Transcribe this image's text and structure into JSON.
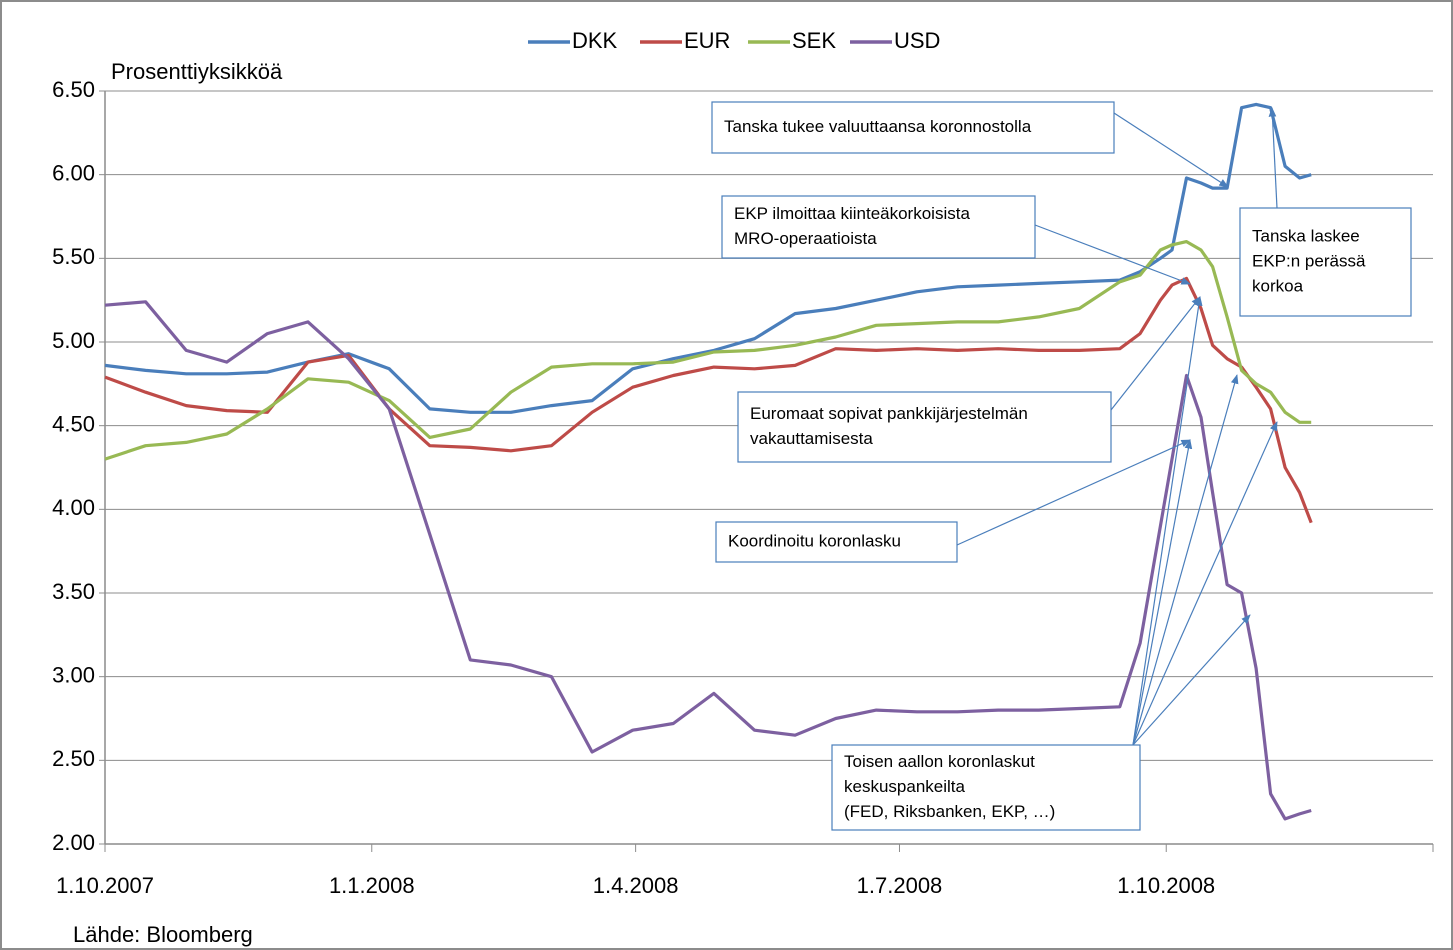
{
  "chart_data": {
    "type": "line",
    "y_label": "Prosenttiyksikköä",
    "source": "Lähde: Bloomberg",
    "x": [
      "2007-10-01",
      "2007-10-15",
      "2007-10-29",
      "2007-11-12",
      "2007-11-26",
      "2007-12-10",
      "2007-12-24",
      "2008-01-07",
      "2008-01-21",
      "2008-02-04",
      "2008-02-18",
      "2008-03-03",
      "2008-03-17",
      "2008-03-31",
      "2008-04-14",
      "2008-04-28",
      "2008-05-12",
      "2008-05-26",
      "2008-06-09",
      "2008-06-23",
      "2008-07-07",
      "2008-07-21",
      "2008-08-04",
      "2008-08-18",
      "2008-09-01",
      "2008-09-15",
      "2008-09-22",
      "2008-09-29",
      "2008-10-03",
      "2008-10-08",
      "2008-10-13",
      "2008-10-17",
      "2008-10-22",
      "2008-10-27",
      "2008-11-01",
      "2008-11-06",
      "2008-11-11",
      "2008-11-16",
      "2008-11-20"
    ],
    "series": [
      {
        "name": "DKK",
        "color": "#4a7ebb",
        "values": [
          4.86,
          4.83,
          4.81,
          4.81,
          4.82,
          4.88,
          4.93,
          4.84,
          4.6,
          4.58,
          4.58,
          4.62,
          4.65,
          4.84,
          4.9,
          4.95,
          5.02,
          5.17,
          5.2,
          5.25,
          5.3,
          5.33,
          5.34,
          5.35,
          5.36,
          5.37,
          5.42,
          5.5,
          5.55,
          5.98,
          5.95,
          5.92,
          5.92,
          6.4,
          6.42,
          6.4,
          6.05,
          5.98,
          6.0
        ]
      },
      {
        "name": "EUR",
        "color": "#be4b48",
        "values": [
          4.79,
          4.7,
          4.62,
          4.59,
          4.58,
          4.88,
          4.92,
          4.6,
          4.38,
          4.37,
          4.35,
          4.38,
          4.58,
          4.73,
          4.8,
          4.85,
          4.84,
          4.86,
          4.96,
          4.95,
          4.96,
          4.95,
          4.96,
          4.95,
          4.95,
          4.96,
          5.05,
          5.25,
          5.34,
          5.38,
          5.2,
          4.98,
          4.9,
          4.85,
          4.73,
          4.6,
          4.25,
          4.1,
          3.92
        ]
      },
      {
        "name": "SEK",
        "color": "#98b954",
        "values": [
          4.3,
          4.38,
          4.4,
          4.45,
          4.6,
          4.78,
          4.76,
          4.65,
          4.43,
          4.48,
          4.7,
          4.85,
          4.87,
          4.87,
          4.88,
          4.94,
          4.95,
          4.98,
          5.03,
          5.1,
          5.11,
          5.12,
          5.12,
          5.15,
          5.2,
          5.36,
          5.4,
          5.55,
          5.58,
          5.6,
          5.55,
          5.45,
          5.15,
          4.83,
          4.75,
          4.7,
          4.58,
          4.52,
          4.52
        ]
      },
      {
        "name": "USD",
        "color": "#7d60a0",
        "values": [
          5.22,
          5.24,
          4.95,
          4.88,
          5.05,
          5.12,
          4.9,
          4.6,
          3.85,
          3.1,
          3.07,
          3.0,
          2.55,
          2.68,
          2.72,
          2.9,
          2.68,
          2.65,
          2.75,
          2.8,
          2.79,
          2.79,
          2.8,
          2.8,
          2.81,
          2.82,
          3.2,
          3.9,
          4.3,
          4.8,
          4.55,
          4.1,
          3.55,
          3.5,
          3.05,
          2.3,
          2.15,
          2.18,
          2.2
        ]
      }
    ],
    "xlim": [
      "2007-10-01",
      "2009-01-01"
    ],
    "xticks": [
      {
        "value": "2007-10-01",
        "label": "1.10.2007"
      },
      {
        "value": "2008-01-01",
        "label": "1.1.2008"
      },
      {
        "value": "2008-04-01",
        "label": "1.4.2008"
      },
      {
        "value": "2008-07-01",
        "label": "1.7.2008"
      },
      {
        "value": "2008-10-01",
        "label": "1.10.2008"
      },
      {
        "value": "2009-01-01",
        "label": ""
      }
    ],
    "ylim": [
      2,
      6.5
    ],
    "yticks": [
      {
        "value": 2,
        "label": "2.00"
      },
      {
        "value": 2.5,
        "label": "2.50"
      },
      {
        "value": 3,
        "label": "3.00"
      },
      {
        "value": 3.5,
        "label": "3.50"
      },
      {
        "value": 4,
        "label": "4.00"
      },
      {
        "value": 4.5,
        "label": "4.50"
      },
      {
        "value": 5,
        "label": "5.00"
      },
      {
        "value": 5.5,
        "label": "5.50"
      },
      {
        "value": 6,
        "label": "6.00"
      },
      {
        "value": 6.5,
        "label": "6.50"
      }
    ],
    "grid": true,
    "legend": "top",
    "annotations": [
      {
        "lines": [
          "Tanska tukee valuuttaansa koronnostolla"
        ]
      },
      {
        "lines": [
          "Tanska laskee",
          "EKP:n perässä",
          "korkoa"
        ]
      },
      {
        "lines": [
          "EKP ilmoittaa kiinteäkorkoisista",
          "MRO-operaatioista"
        ]
      },
      {
        "lines": [
          "Euromaat sopivat pankkijärjestelmän",
          "vakauttamisesta"
        ]
      },
      {
        "lines": [
          "Koordinoitu koronlasku"
        ]
      },
      {
        "lines": [
          "Toisen aallon koronlaskut",
          "keskuspankeilta",
          "(FED, Riksbanken, EKP, …)"
        ]
      }
    ]
  }
}
